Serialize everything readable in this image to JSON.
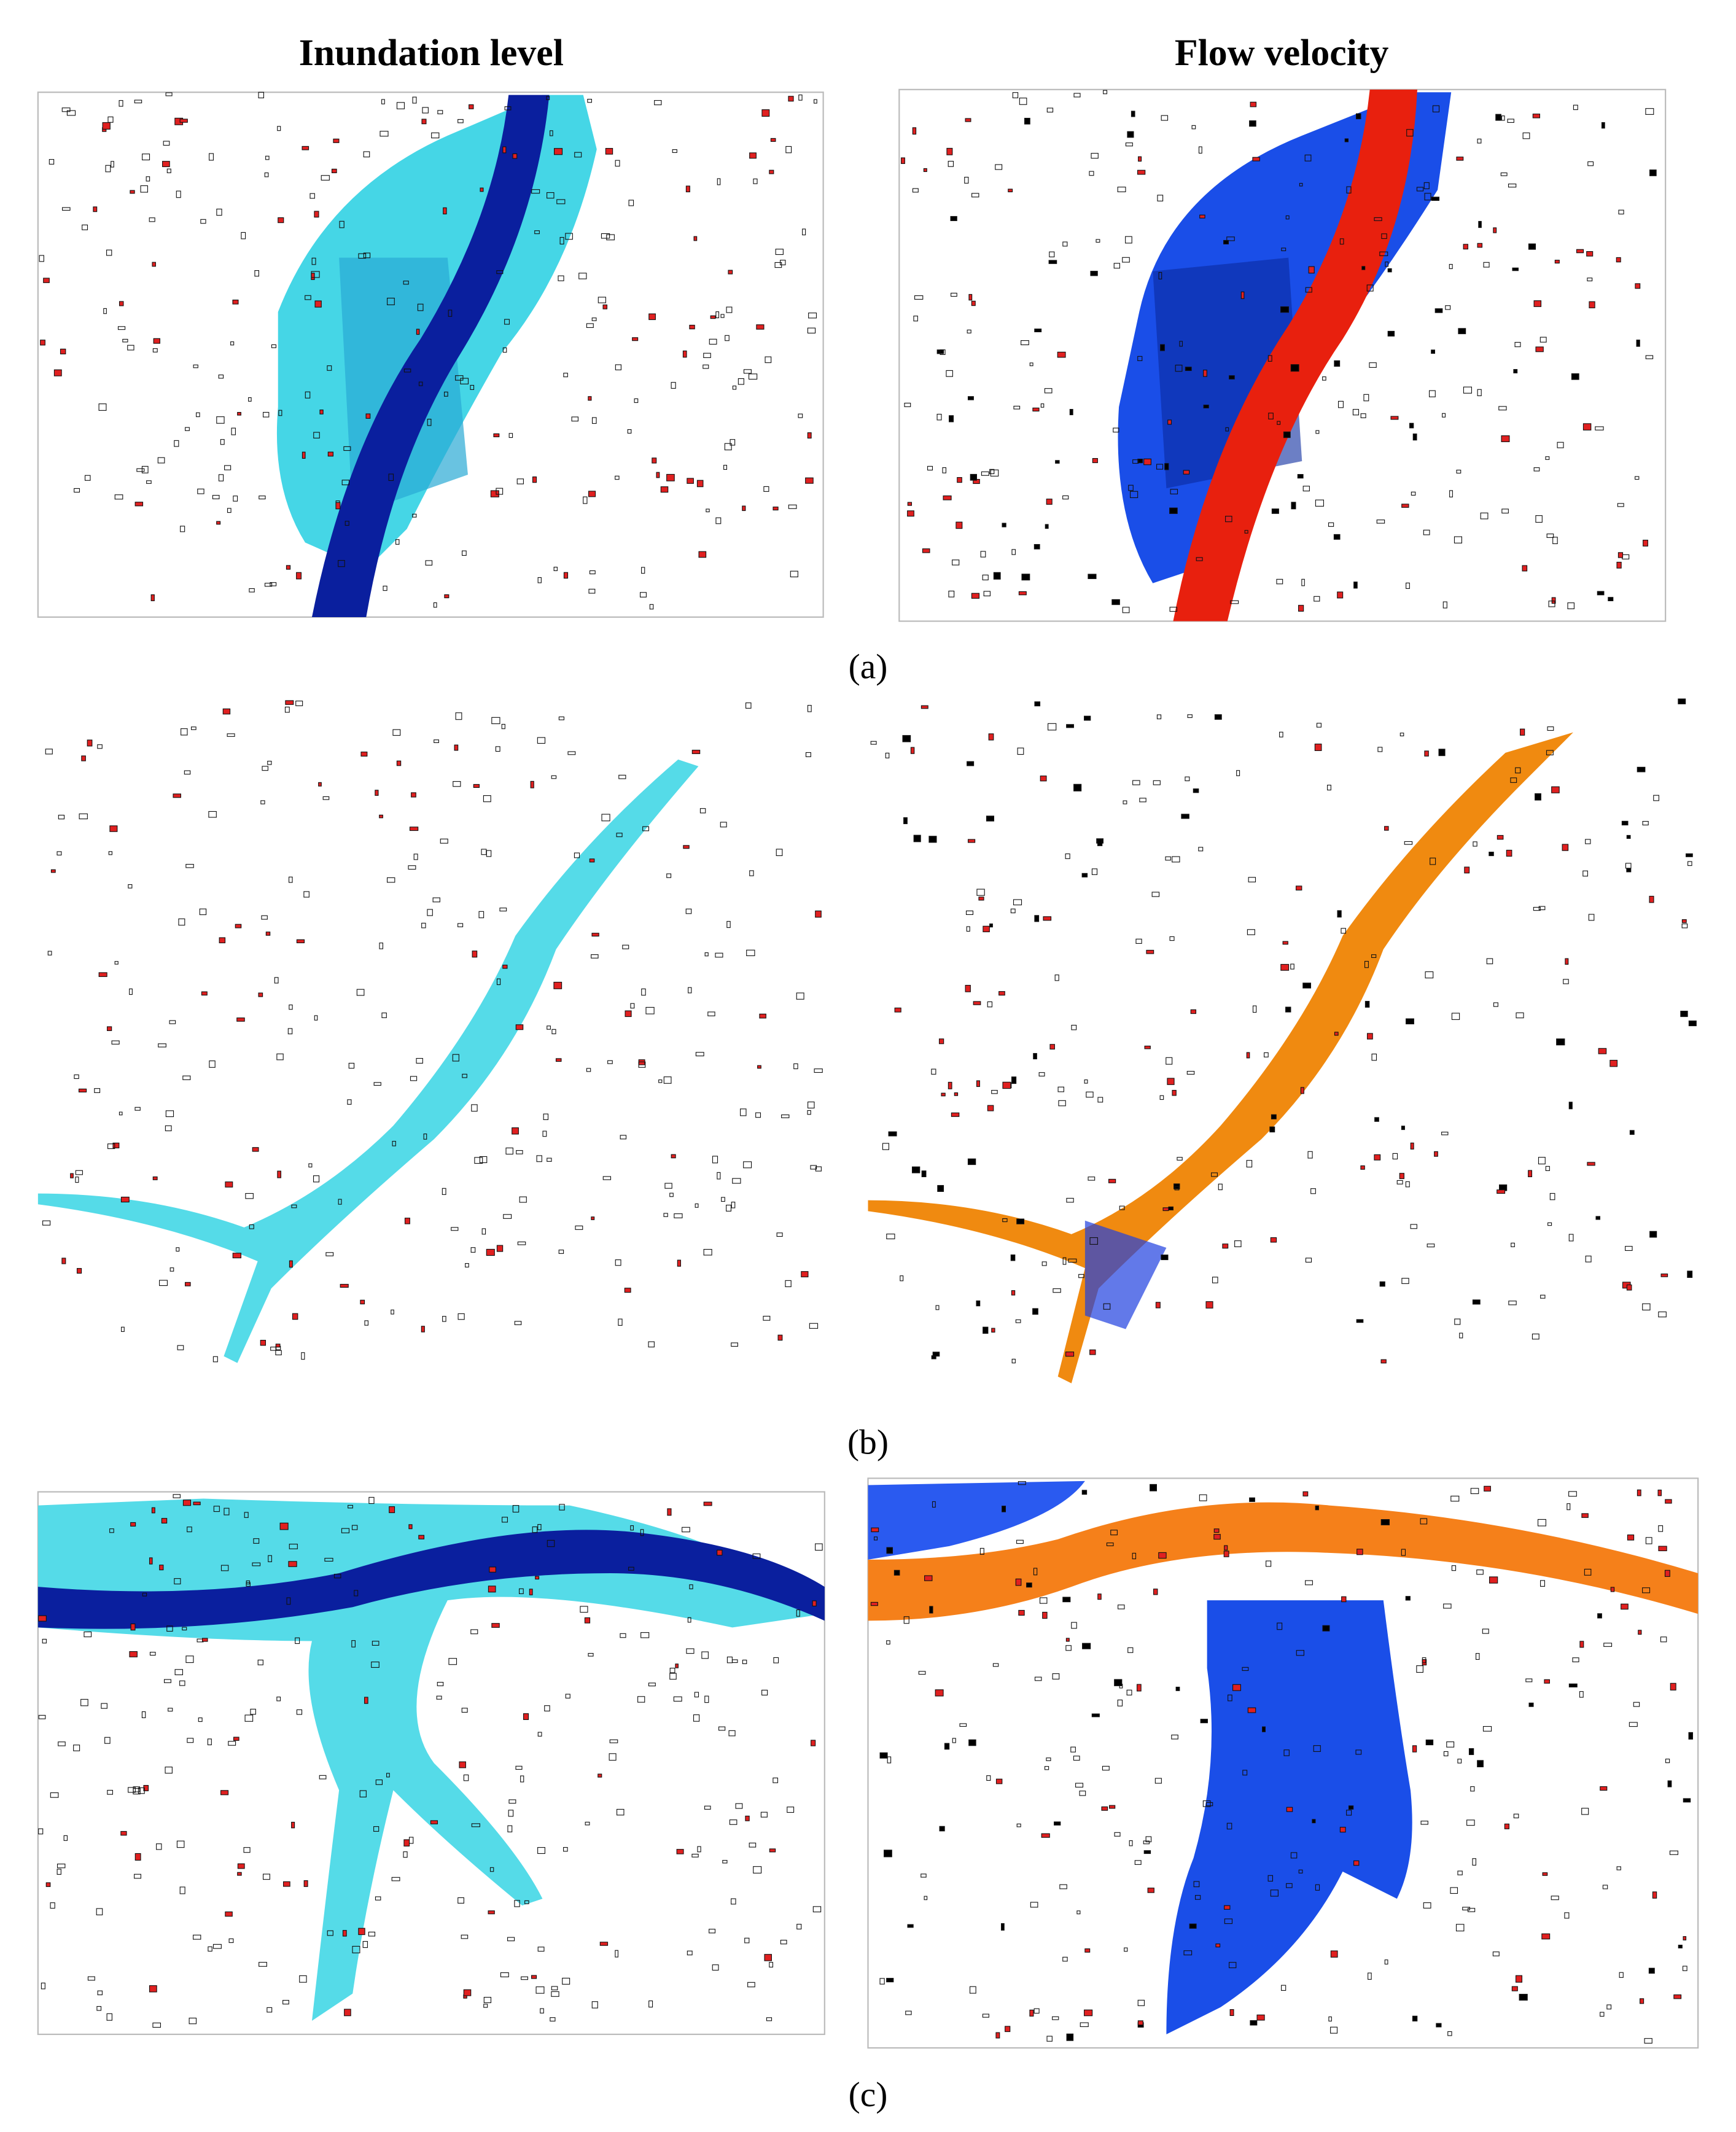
{
  "columns": {
    "left": "Inundation level",
    "right": "Flow velocity"
  },
  "panels": [
    {
      "label": "(a)"
    },
    {
      "label": "(b)"
    },
    {
      "label": "(c)"
    }
  ]
}
